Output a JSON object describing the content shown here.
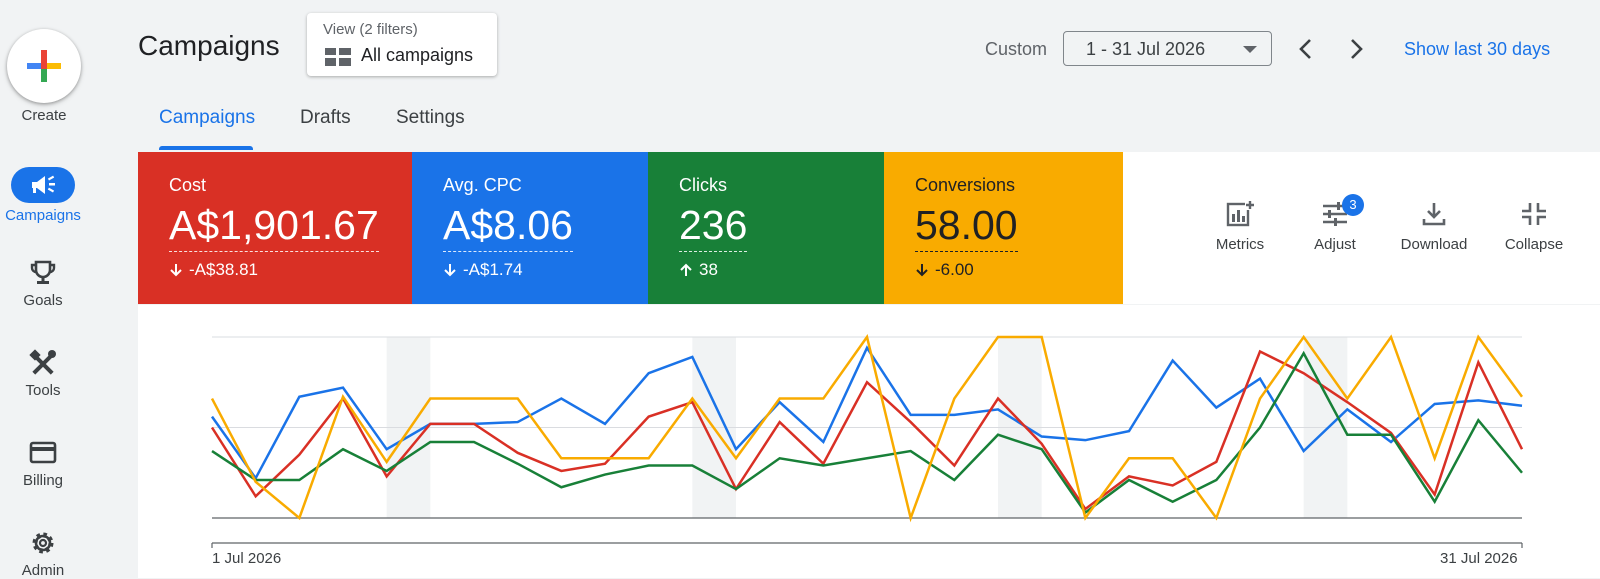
{
  "rail": {
    "create_label": "Create",
    "items": [
      {
        "label": "Campaigns",
        "icon": "megaphone-icon",
        "active": true
      },
      {
        "label": "Goals",
        "icon": "trophy-icon"
      },
      {
        "label": "Tools",
        "icon": "tools-icon"
      },
      {
        "label": "Billing",
        "icon": "credit-card-icon"
      },
      {
        "label": "Admin",
        "icon": "gear-icon"
      }
    ]
  },
  "header": {
    "title": "Campaigns",
    "view_filters_label": "View (2 filters)",
    "view_value": "All campaigns",
    "date_mode": "Custom",
    "date_range": "1 - 31 Jul 2026",
    "show_last_label": "Show last 30 days"
  },
  "tabs": [
    {
      "label": "Campaigns",
      "active": true
    },
    {
      "label": "Drafts"
    },
    {
      "label": "Settings"
    }
  ],
  "metrics": [
    {
      "label": "Cost",
      "value": "A$1,901.67",
      "delta": "-A$38.81",
      "direction": "down",
      "color": "#d93025"
    },
    {
      "label": "Avg. CPC",
      "value": "A$8.06",
      "delta": "-A$1.74",
      "direction": "down",
      "color": "#1a73e8"
    },
    {
      "label": "Clicks",
      "value": "236",
      "delta": "38",
      "direction": "up",
      "color": "#188038"
    },
    {
      "label": "Conversions",
      "value": "58.00",
      "delta": "-6.00",
      "direction": "down",
      "color": "#f9ab00"
    }
  ],
  "tools": {
    "metrics_label": "Metrics",
    "adjust_label": "Adjust",
    "adjust_badge": "3",
    "download_label": "Download",
    "collapse_label": "Collapse"
  },
  "chart_data": {
    "type": "line",
    "x_start_label": "1 Jul 2026",
    "x_end_label": "31 Jul 2026",
    "x": [
      "1 Jul 2026",
      "2 Jul 2026",
      "3 Jul 2026",
      "4 Jul 2026",
      "5 Jul 2026",
      "6 Jul 2026",
      "7 Jul 2026",
      "8 Jul 2026",
      "9 Jul 2026",
      "10 Jul 2026",
      "11 Jul 2026",
      "12 Jul 2026",
      "13 Jul 2026",
      "14 Jul 2026",
      "15 Jul 2026",
      "16 Jul 2026",
      "17 Jul 2026",
      "18 Jul 2026",
      "19 Jul 2026",
      "20 Jul 2026",
      "21 Jul 2026",
      "22 Jul 2026",
      "23 Jul 2026",
      "24 Jul 2026",
      "25 Jul 2026",
      "26 Jul 2026",
      "27 Jul 2026",
      "28 Jul 2026",
      "29 Jul 2026",
      "30 Jul 2026",
      "31 Jul 2026"
    ],
    "ylim": [
      0,
      100
    ],
    "grid": true,
    "weekend_shading": [
      [
        4,
        5
      ],
      [
        11,
        12
      ],
      [
        18,
        19
      ],
      [
        25,
        26
      ]
    ],
    "series": [
      {
        "color": "#1a73e8",
        "values": [
          56,
          22,
          67,
          72,
          38,
          52,
          52,
          53,
          66,
          52,
          80,
          89,
          38,
          64,
          42,
          94,
          57,
          57,
          60,
          45,
          43,
          48,
          87,
          61,
          77,
          37,
          60,
          42,
          63,
          65,
          62
        ]
      },
      {
        "color": "#d93025",
        "values": [
          50,
          12,
          35,
          66,
          23,
          52,
          52,
          36,
          26,
          30,
          56,
          64,
          16,
          53,
          30,
          75,
          53,
          29,
          66,
          41,
          5,
          23,
          18,
          31,
          92,
          80,
          64,
          47,
          13,
          86,
          38
        ]
      },
      {
        "color": "#188038",
        "values": [
          37,
          21,
          21,
          38,
          26,
          42,
          42,
          30,
          17,
          24,
          29,
          29,
          16,
          33,
          29,
          33,
          37,
          21,
          46,
          38,
          3,
          21,
          9,
          21,
          50,
          91,
          46,
          46,
          9,
          54,
          25
        ]
      },
      {
        "color": "#f9ab00",
        "values": [
          66,
          20,
          0,
          67,
          31,
          66,
          66,
          66,
          33,
          33,
          33,
          66,
          33,
          66,
          66,
          100,
          0,
          66,
          100,
          100,
          0,
          33,
          33,
          0,
          66,
          100,
          66,
          100,
          33,
          100,
          67
        ]
      }
    ]
  }
}
